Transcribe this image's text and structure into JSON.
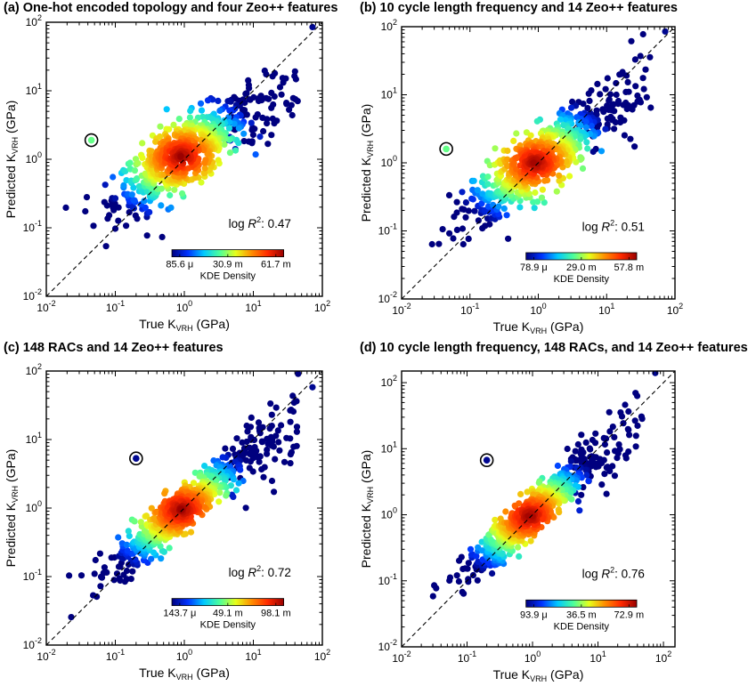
{
  "chart_data": [
    {
      "type": "scatter",
      "panel": "(a)",
      "title": "(a) One-hot encoded topology and four Zeo++ features",
      "xlabel": "True K",
      "xlabel_sub": "VRH",
      "xlabel_unit": " (GPa)",
      "ylabel": "Predicted K",
      "ylabel_sub": "VRH",
      "ylabel_unit": " (GPa)",
      "scale": "log",
      "xlim": [
        0.01,
        100
      ],
      "ylim": [
        0.01,
        100
      ],
      "x_ticks": [
        {
          "base": "10",
          "exp": "-2"
        },
        {
          "base": "10",
          "exp": "-1"
        },
        {
          "base": "10",
          "exp": "0"
        },
        {
          "base": "10",
          "exp": "1"
        },
        {
          "base": "10",
          "exp": "2"
        }
      ],
      "y_ticks": [
        {
          "base": "10",
          "exp": "-2"
        },
        {
          "base": "10",
          "exp": "-1"
        },
        {
          "base": "10",
          "exp": "0"
        },
        {
          "base": "10",
          "exp": "1"
        },
        {
          "base": "10",
          "exp": "2"
        }
      ],
      "r2_prefix": "log ",
      "r2_symbol": "R",
      "r2_exp": "2",
      "r2_value": ": 0.47",
      "colorbar_label": "KDE Density",
      "colorbar_ticks": [
        "85.6 μ",
        "30.9 m",
        "61.7 m"
      ],
      "parity_line": "y = x",
      "outlier": {
        "x": 0.045,
        "y": 1.9
      },
      "max_point": {
        "x": 72,
        "y": 85
      },
      "cloud": {
        "center_x": 0.9,
        "center_y": 1.1,
        "spread": 0.5,
        "slope": 0.62
      }
    },
    {
      "type": "scatter",
      "panel": "(b)",
      "title": "(b) 10 cycle length frequency and 14 Zeo++ features",
      "xlabel": "True K",
      "xlabel_sub": "VRH",
      "xlabel_unit": " (GPa)",
      "ylabel": "Predicted K",
      "ylabel_sub": "VRH",
      "ylabel_unit": " (GPa)",
      "scale": "log",
      "xlim": [
        0.01,
        100
      ],
      "ylim": [
        0.01,
        100
      ],
      "x_ticks": [
        {
          "base": "10",
          "exp": "-2"
        },
        {
          "base": "10",
          "exp": "-1"
        },
        {
          "base": "10",
          "exp": "0"
        },
        {
          "base": "10",
          "exp": "1"
        },
        {
          "base": "10",
          "exp": "2"
        }
      ],
      "y_ticks": [
        {
          "base": "10",
          "exp": "-2"
        },
        {
          "base": "10",
          "exp": "-1"
        },
        {
          "base": "10",
          "exp": "0"
        },
        {
          "base": "10",
          "exp": "1"
        },
        {
          "base": "10",
          "exp": "2"
        }
      ],
      "r2_prefix": "log ",
      "r2_symbol": "R",
      "r2_exp": "2",
      "r2_value": ": 0.51",
      "colorbar_label": "KDE Density",
      "colorbar_ticks": [
        "78.9 μ",
        "29.0 m",
        "57.8 m"
      ],
      "parity_line": "y = x",
      "outlier": {
        "x": 0.045,
        "y": 1.6
      },
      "max_point": {
        "x": 72,
        "y": 85
      },
      "cloud": {
        "center_x": 0.9,
        "center_y": 1.0,
        "spread": 0.45,
        "slope": 0.68
      }
    },
    {
      "type": "scatter",
      "panel": "(c)",
      "title": "(c) 148 RACs and 14 Zeo++ features",
      "xlabel": "True K",
      "xlabel_sub": "VRH",
      "xlabel_unit": " (GPa)",
      "ylabel": "Predicted K",
      "ylabel_sub": "VRH",
      "ylabel_unit": " (GPa)",
      "scale": "log",
      "xlim": [
        0.01,
        100
      ],
      "ylim": [
        0.01,
        100
      ],
      "x_ticks": [
        {
          "base": "10",
          "exp": "-2"
        },
        {
          "base": "10",
          "exp": "-1"
        },
        {
          "base": "10",
          "exp": "0"
        },
        {
          "base": "10",
          "exp": "1"
        },
        {
          "base": "10",
          "exp": "2"
        }
      ],
      "y_ticks": [
        {
          "base": "10",
          "exp": "-2"
        },
        {
          "base": "10",
          "exp": "-1"
        },
        {
          "base": "10",
          "exp": "0"
        },
        {
          "base": "10",
          "exp": "1"
        },
        {
          "base": "10",
          "exp": "2"
        }
      ],
      "r2_prefix": "log ",
      "r2_symbol": "R",
      "r2_exp": "2",
      "r2_value": ": 0.72",
      "colorbar_label": "KDE Density",
      "colorbar_ticks": [
        "143.7 μ",
        "49.1 m",
        "98.1 m"
      ],
      "parity_line": "y = x",
      "outlier": {
        "x": 0.2,
        "y": 5.3
      },
      "max_point": {
        "x": 72,
        "y": 58
      },
      "cloud": {
        "center_x": 0.9,
        "center_y": 0.95,
        "spread": 0.35,
        "slope": 0.82
      }
    },
    {
      "type": "scatter",
      "panel": "(d)",
      "title": "(d) 10 cycle length frequency, 148 RACs, and 14 Zeo++ features",
      "xlabel": "True K",
      "xlabel_sub": "VRH",
      "xlabel_unit": " (GPa)",
      "ylabel": "Predicted K",
      "ylabel_sub": "VRH",
      "ylabel_unit": " (GPa)",
      "scale": "log",
      "xlim": [
        0.01,
        150
      ],
      "ylim": [
        0.01,
        150
      ],
      "x_ticks": [
        {
          "base": "10",
          "exp": "-2"
        },
        {
          "base": "10",
          "exp": "-1"
        },
        {
          "base": "10",
          "exp": "0"
        },
        {
          "base": "10",
          "exp": "1"
        },
        {
          "base": "10",
          "exp": "2"
        }
      ],
      "y_ticks": [
        {
          "base": "10",
          "exp": "-2"
        },
        {
          "base": "10",
          "exp": "-1"
        },
        {
          "base": "10",
          "exp": "0"
        },
        {
          "base": "10",
          "exp": "1"
        },
        {
          "base": "10",
          "exp": "2"
        }
      ],
      "r2_prefix": "log ",
      "r2_symbol": "R",
      "r2_exp": "2",
      "r2_value": ": 0.76",
      "colorbar_label": "KDE Density",
      "colorbar_ticks": [
        "93.9 μ",
        "36.5 m",
        "72.9 m"
      ],
      "parity_line": "y = x",
      "outlier": {
        "x": 0.2,
        "y": 6.7
      },
      "max_point": {
        "x": 75,
        "y": 140
      },
      "cloud": {
        "center_x": 0.9,
        "center_y": 0.95,
        "spread": 0.32,
        "slope": 0.85
      }
    }
  ],
  "colormap": [
    "#00007f",
    "#0033ff",
    "#00c8ff",
    "#4dff9a",
    "#e6ff1a",
    "#ff8c00",
    "#ff2a00",
    "#990000"
  ],
  "marker_edge_color": "#000000"
}
